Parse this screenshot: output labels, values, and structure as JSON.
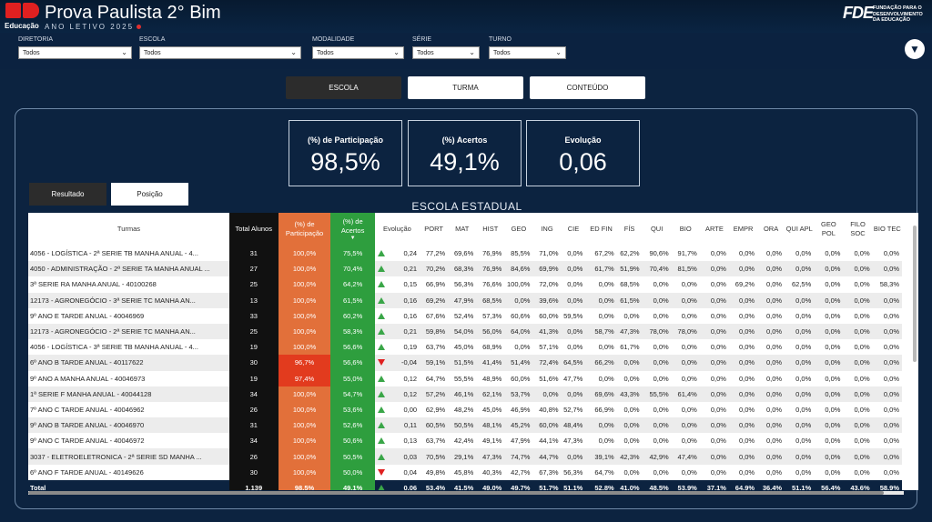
{
  "header": {
    "title": "Prova Paulista 2° Bim",
    "subtitle": "ANO LETIVO 2025",
    "logo_text": "Educação",
    "partner_mark": "FDE",
    "partner_text": "FUNDAÇÃO PARA O DESENVOLVIMENTO DA EDUCAÇÃO"
  },
  "filters": [
    {
      "label": "DIRETORIA",
      "value": "Todos"
    },
    {
      "label": "ESCOLA",
      "value": "Todos"
    },
    {
      "label": "MODALIDADE",
      "value": "Todos"
    },
    {
      "label": "SÉRIE",
      "value": "Todos"
    },
    {
      "label": "TURNO",
      "value": "Todos"
    }
  ],
  "tabs": [
    "ESCOLA",
    "TURMA",
    "CONTEÚDO"
  ],
  "kpis": [
    {
      "label": "(%) de Participação",
      "value": "98,5%"
    },
    {
      "label": "(%) Acertos",
      "value": "49,1%"
    },
    {
      "label": "Evolução",
      "value": "0,06"
    }
  ],
  "subtabs": [
    "Resultado",
    "Posição"
  ],
  "table": {
    "title": "ESCOLA ESTADUAL",
    "headers": [
      "Turmas",
      "Total Alunos",
      "(%) de Participação",
      "(%) de Acertos",
      "Evolução",
      "PORT",
      "MAT",
      "HIST",
      "GEO",
      "ING",
      "CIE",
      "ED FIN",
      "FÍS",
      "QUI",
      "BIO",
      "ARTE",
      "EMPR",
      "ORA",
      "QUI APL",
      "GEO POL",
      "FILO SOC",
      "BIO TEC"
    ],
    "rows": [
      {
        "name": "4056 - LOGÍSTICA - 2ª SERIE TB MANHA ANUAL - 4...",
        "total": "31",
        "part": "100,0%",
        "acertos": "75,5%",
        "trend": "up",
        "evo": "0,24",
        "vals": [
          "77,2%",
          "69,6%",
          "76,9%",
          "85,5%",
          "71,0%",
          "0,0%",
          "67,2%",
          "62,2%",
          "90,6%",
          "91,7%",
          "0,0%",
          "0,0%",
          "0,0%",
          "0,0%",
          "0,0%",
          "0,0%",
          "0,0%"
        ]
      },
      {
        "name": "4050 - ADMINISTRAÇÃO - 2ª SERIE TA MANHA ANUAL ...",
        "total": "27",
        "part": "100,0%",
        "acertos": "70,4%",
        "trend": "up",
        "evo": "0,21",
        "vals": [
          "70,2%",
          "68,3%",
          "76,9%",
          "84,6%",
          "69,9%",
          "0,0%",
          "61,7%",
          "51,9%",
          "70,4%",
          "81,5%",
          "0,0%",
          "0,0%",
          "0,0%",
          "0,0%",
          "0,0%",
          "0,0%",
          "0,0%"
        ]
      },
      {
        "name": "3ª SERIE RA MANHA ANUAL - 40100268",
        "total": "25",
        "part": "100,0%",
        "acertos": "64,2%",
        "trend": "up",
        "evo": "0,15",
        "vals": [
          "66,9%",
          "56,3%",
          "76,6%",
          "100,0%",
          "72,0%",
          "0,0%",
          "0,0%",
          "68,5%",
          "0,0%",
          "0,0%",
          "0,0%",
          "69,2%",
          "0,0%",
          "62,5%",
          "0,0%",
          "0,0%",
          "58,3%"
        ]
      },
      {
        "name": "12173 - AGRONEGÓCIO - 3ª SERIE TC MANHA AN...",
        "total": "13",
        "part": "100,0%",
        "acertos": "61,5%",
        "trend": "up",
        "evo": "0,16",
        "vals": [
          "69,2%",
          "47,9%",
          "68,5%",
          "0,0%",
          "39,6%",
          "0,0%",
          "0,0%",
          "61,5%",
          "0,0%",
          "0,0%",
          "0,0%",
          "0,0%",
          "0,0%",
          "0,0%",
          "0,0%",
          "0,0%",
          "0,0%"
        ]
      },
      {
        "name": "9º ANO E TARDE ANUAL - 40046969",
        "total": "33",
        "part": "100,0%",
        "acertos": "60,2%",
        "trend": "up",
        "evo": "0,16",
        "vals": [
          "67,6%",
          "52,4%",
          "57,3%",
          "60,6%",
          "60,0%",
          "59,5%",
          "0,0%",
          "0,0%",
          "0,0%",
          "0,0%",
          "0,0%",
          "0,0%",
          "0,0%",
          "0,0%",
          "0,0%",
          "0,0%",
          "0,0%"
        ]
      },
      {
        "name": "12173 - AGRONEGÓCIO - 2ª SERIE TC MANHA AN...",
        "total": "25",
        "part": "100,0%",
        "acertos": "58,3%",
        "trend": "up",
        "evo": "0,21",
        "vals": [
          "59,8%",
          "54,0%",
          "56,0%",
          "64,0%",
          "41,3%",
          "0,0%",
          "58,7%",
          "47,3%",
          "78,0%",
          "78,0%",
          "0,0%",
          "0,0%",
          "0,0%",
          "0,0%",
          "0,0%",
          "0,0%",
          "0,0%"
        ]
      },
      {
        "name": "4056 - LOGÍSTICA - 3ª SERIE TB MANHA ANUAL - 4...",
        "total": "19",
        "part": "100,0%",
        "acertos": "56,6%",
        "trend": "up",
        "evo": "0,19",
        "vals": [
          "63,7%",
          "45,0%",
          "68,9%",
          "0,0%",
          "57,1%",
          "0,0%",
          "0,0%",
          "61,7%",
          "0,0%",
          "0,0%",
          "0,0%",
          "0,0%",
          "0,0%",
          "0,0%",
          "0,0%",
          "0,0%",
          "0,0%"
        ]
      },
      {
        "name": "6º ANO B TARDE ANUAL - 40117622",
        "total": "30",
        "part": "96,7%",
        "part_low": true,
        "acertos": "56,6%",
        "trend": "down",
        "evo": "-0,04",
        "vals": [
          "59,1%",
          "51,5%",
          "41,4%",
          "51,4%",
          "72,4%",
          "64,5%",
          "66,2%",
          "0,0%",
          "0,0%",
          "0,0%",
          "0,0%",
          "0,0%",
          "0,0%",
          "0,0%",
          "0,0%",
          "0,0%",
          "0,0%"
        ]
      },
      {
        "name": "9º ANO A MANHA ANUAL - 40046973",
        "total": "19",
        "part": "97,4%",
        "part_low": true,
        "acertos": "55,0%",
        "trend": "up",
        "evo": "0,12",
        "vals": [
          "64,7%",
          "55,5%",
          "48,9%",
          "60,0%",
          "51,6%",
          "47,7%",
          "0,0%",
          "0,0%",
          "0,0%",
          "0,0%",
          "0,0%",
          "0,0%",
          "0,0%",
          "0,0%",
          "0,0%",
          "0,0%",
          "0,0%"
        ]
      },
      {
        "name": "1ª SERIE F MANHA ANUAL - 40044128",
        "total": "34",
        "part": "100,0%",
        "acertos": "54,7%",
        "trend": "up",
        "evo": "0,12",
        "vals": [
          "57,2%",
          "46,1%",
          "62,1%",
          "53,7%",
          "0,0%",
          "0,0%",
          "69,6%",
          "43,3%",
          "55,5%",
          "61,4%",
          "0,0%",
          "0,0%",
          "0,0%",
          "0,0%",
          "0,0%",
          "0,0%",
          "0,0%"
        ]
      },
      {
        "name": "7º ANO C TARDE ANUAL - 40046962",
        "total": "26",
        "part": "100,0%",
        "acertos": "53,6%",
        "trend": "up",
        "evo": "0,00",
        "vals": [
          "62,9%",
          "48,2%",
          "45,0%",
          "46,9%",
          "40,8%",
          "52,7%",
          "66,9%",
          "0,0%",
          "0,0%",
          "0,0%",
          "0,0%",
          "0,0%",
          "0,0%",
          "0,0%",
          "0,0%",
          "0,0%",
          "0,0%"
        ]
      },
      {
        "name": "9º ANO B TARDE ANUAL - 40046970",
        "total": "31",
        "part": "100,0%",
        "acertos": "52,6%",
        "trend": "up",
        "evo": "0,11",
        "vals": [
          "60,5%",
          "50,5%",
          "48,1%",
          "45,2%",
          "60,0%",
          "48,4%",
          "0,0%",
          "0,0%",
          "0,0%",
          "0,0%",
          "0,0%",
          "0,0%",
          "0,0%",
          "0,0%",
          "0,0%",
          "0,0%",
          "0,0%"
        ]
      },
      {
        "name": "9º ANO C TARDE ANUAL - 40046972",
        "total": "34",
        "part": "100,0%",
        "acertos": "50,6%",
        "trend": "up",
        "evo": "0,13",
        "vals": [
          "63,7%",
          "42,4%",
          "49,1%",
          "47,9%",
          "44,1%",
          "47,3%",
          "0,0%",
          "0,0%",
          "0,0%",
          "0,0%",
          "0,0%",
          "0,0%",
          "0,0%",
          "0,0%",
          "0,0%",
          "0,0%",
          "0,0%"
        ]
      },
      {
        "name": "3037 - ELETROELETRONICA - 2ª SERIE SD MANHA ...",
        "total": "26",
        "part": "100,0%",
        "acertos": "50,5%",
        "trend": "up",
        "evo": "0,03",
        "vals": [
          "70,5%",
          "29,1%",
          "47,3%",
          "74,7%",
          "44,7%",
          "0,0%",
          "39,1%",
          "42,3%",
          "42,9%",
          "47,4%",
          "0,0%",
          "0,0%",
          "0,0%",
          "0,0%",
          "0,0%",
          "0,0%",
          "0,0%"
        ]
      },
      {
        "name": "6º ANO F TARDE ANUAL - 40149626",
        "total": "30",
        "part": "100,0%",
        "acertos": "50,0%",
        "trend": "down",
        "evo": "0,04",
        "vals": [
          "49,8%",
          "45,8%",
          "40,3%",
          "42,7%",
          "67,3%",
          "56,3%",
          "64,7%",
          "0,0%",
          "0,0%",
          "0,0%",
          "0,0%",
          "0,0%",
          "0,0%",
          "0,0%",
          "0,0%",
          "0,0%",
          "0,0%"
        ]
      }
    ],
    "total": {
      "name": "Total",
      "total": "1.139",
      "part": "98,5%",
      "acertos": "49,1%",
      "trend": "up",
      "evo": "0,06",
      "vals": [
        "53,4%",
        "41,5%",
        "49,0%",
        "49,7%",
        "51,7%",
        "51,1%",
        "52,8%",
        "41,0%",
        "48,5%",
        "53,9%",
        "37,1%",
        "64,9%",
        "36,4%",
        "51,1%",
        "56,4%",
        "43,6%",
        "58,9%"
      ]
    }
  },
  "icons": {
    "filter": "filter-icon",
    "dropdown": "chevron-down-icon",
    "trend_up": "triangle-up-icon",
    "trend_down": "triangle-down-icon"
  },
  "colors": {
    "background": "#0c2340",
    "participation": "#e2703a",
    "accuracy": "#2e9e3e",
    "up": "#3aa648",
    "down": "#e02020"
  }
}
